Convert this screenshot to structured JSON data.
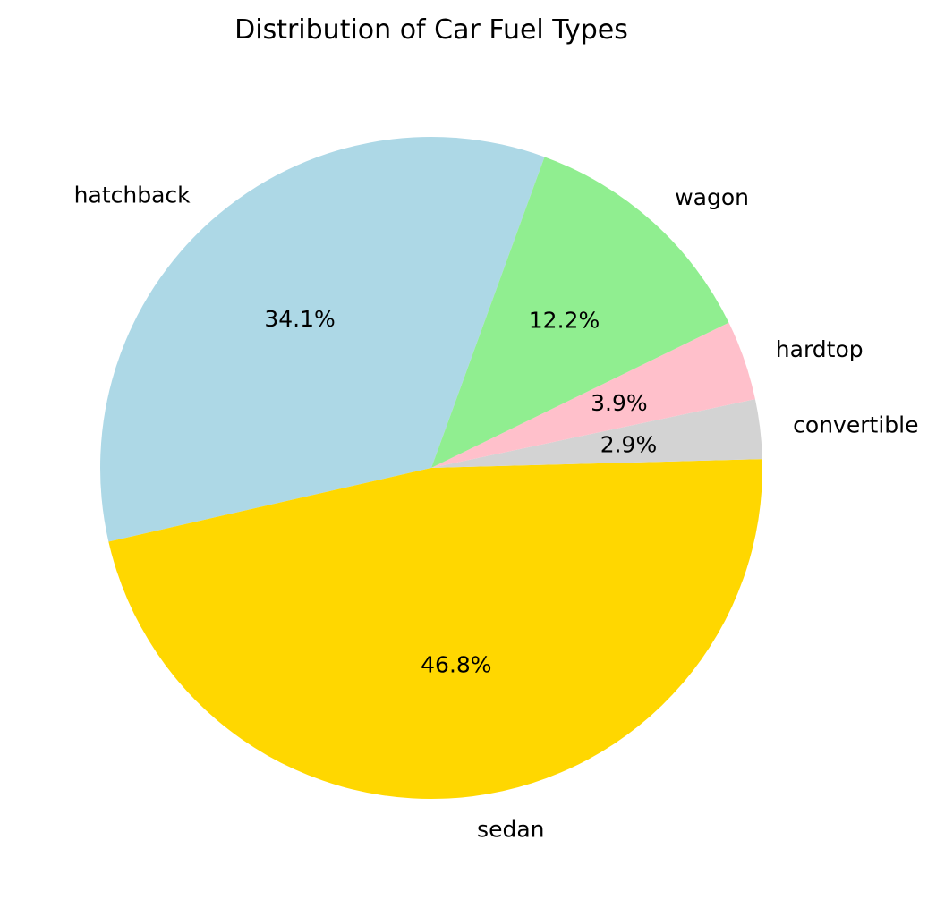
{
  "chart_data": {
    "type": "pie",
    "title": "Distribution of Car Fuel Types",
    "slices": [
      {
        "label": "hatchback",
        "value": 34.1,
        "pct_label": "34.1%",
        "color": "#add8e6"
      },
      {
        "label": "sedan",
        "value": 46.8,
        "pct_label": "46.8%",
        "color": "#ffd700"
      },
      {
        "label": "convertible",
        "value": 2.9,
        "pct_label": "2.9%",
        "color": "#d3d3d3"
      },
      {
        "label": "hardtop",
        "value": 3.9,
        "pct_label": "3.9%",
        "color": "#ffc0cb"
      },
      {
        "label": "wagon",
        "value": 12.2,
        "pct_label": "12.2%",
        "color": "#90ee90"
      }
    ],
    "start_angle_deg": 70,
    "direction": "counterclockwise"
  }
}
